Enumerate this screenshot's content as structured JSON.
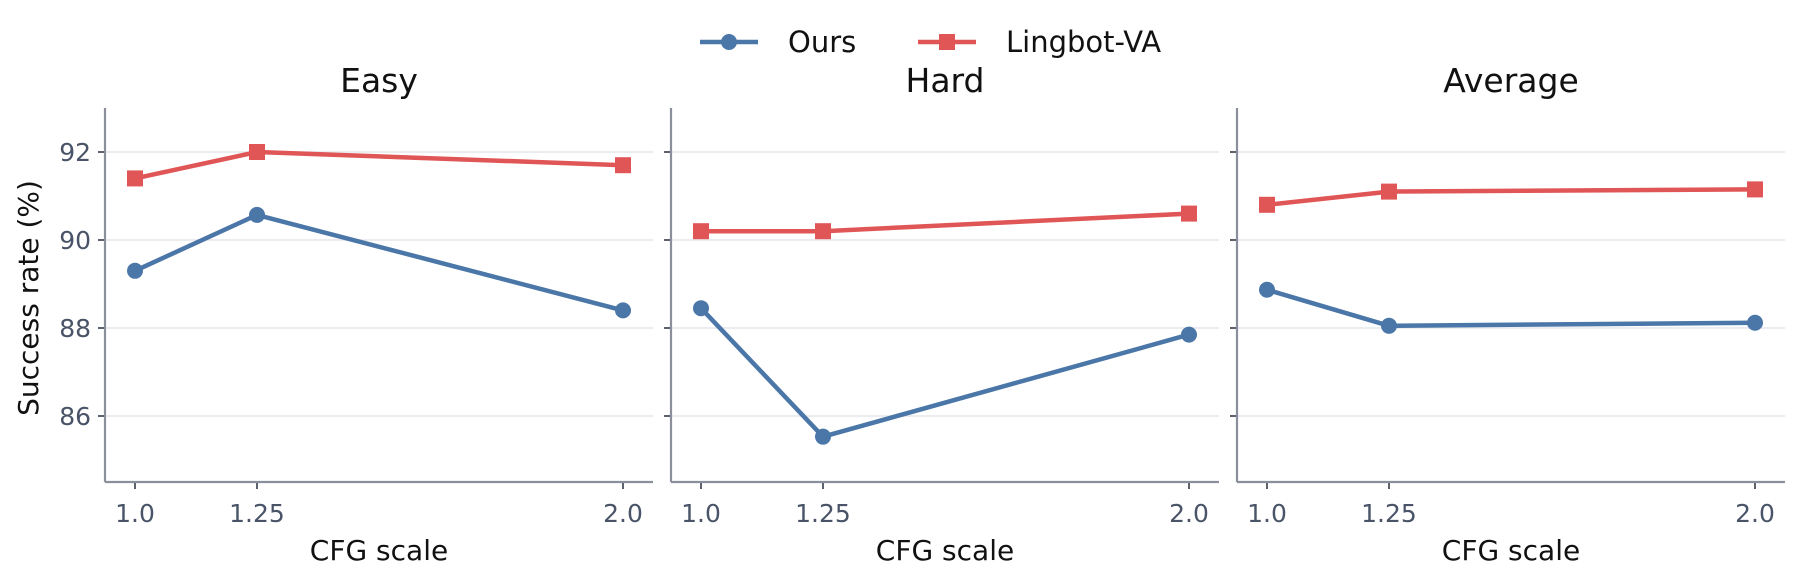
{
  "colors": {
    "ours": "#4a76a8",
    "lingbot": "#e05556",
    "axis": "#8a8f9b",
    "grid": "#e4e6ec"
  },
  "legend": {
    "placement": "top-center",
    "items": [
      {
        "label": "Ours",
        "marker": "circle",
        "color": "#4a76a8"
      },
      {
        "label": "Lingbot-VA",
        "marker": "square",
        "color": "#e05556"
      }
    ]
  },
  "ylabel": "Success rate (%)",
  "chart_data": [
    {
      "type": "line",
      "title": "Easy",
      "xlabel": "CFG scale",
      "ylabel": "Success rate (%)",
      "x": [
        1.0,
        1.25,
        2.0
      ],
      "x_tick_labels": [
        "1.0",
        "1.25",
        "2.0"
      ],
      "y_ticks": [
        86,
        88,
        90,
        92
      ],
      "ylim": [
        84.5,
        93.0
      ],
      "grid": true,
      "series": [
        {
          "name": "Ours",
          "values": [
            89.3,
            90.57,
            88.4
          ]
        },
        {
          "name": "Lingbot-VA",
          "values": [
            91.4,
            92.0,
            91.7
          ]
        }
      ]
    },
    {
      "type": "line",
      "title": "Hard",
      "xlabel": "CFG scale",
      "ylabel": "",
      "x": [
        1.0,
        1.25,
        2.0
      ],
      "x_tick_labels": [
        "1.0",
        "1.25",
        "2.0"
      ],
      "y_ticks": [
        86,
        88,
        90,
        92
      ],
      "ylim": [
        84.5,
        93.0
      ],
      "grid": true,
      "series": [
        {
          "name": "Ours",
          "values": [
            88.45,
            85.53,
            87.85
          ]
        },
        {
          "name": "Lingbot-VA",
          "values": [
            90.2,
            90.2,
            90.6
          ]
        }
      ]
    },
    {
      "type": "line",
      "title": "Average",
      "xlabel": "CFG scale",
      "ylabel": "",
      "x": [
        1.0,
        1.25,
        2.0
      ],
      "x_tick_labels": [
        "1.0",
        "1.25",
        "2.0"
      ],
      "y_ticks": [
        86,
        88,
        90,
        92
      ],
      "ylim": [
        84.5,
        93.0
      ],
      "grid": true,
      "series": [
        {
          "name": "Ours",
          "values": [
            88.87,
            88.05,
            88.12
          ]
        },
        {
          "name": "Lingbot-VA",
          "values": [
            90.8,
            91.1,
            91.15
          ]
        }
      ]
    }
  ]
}
